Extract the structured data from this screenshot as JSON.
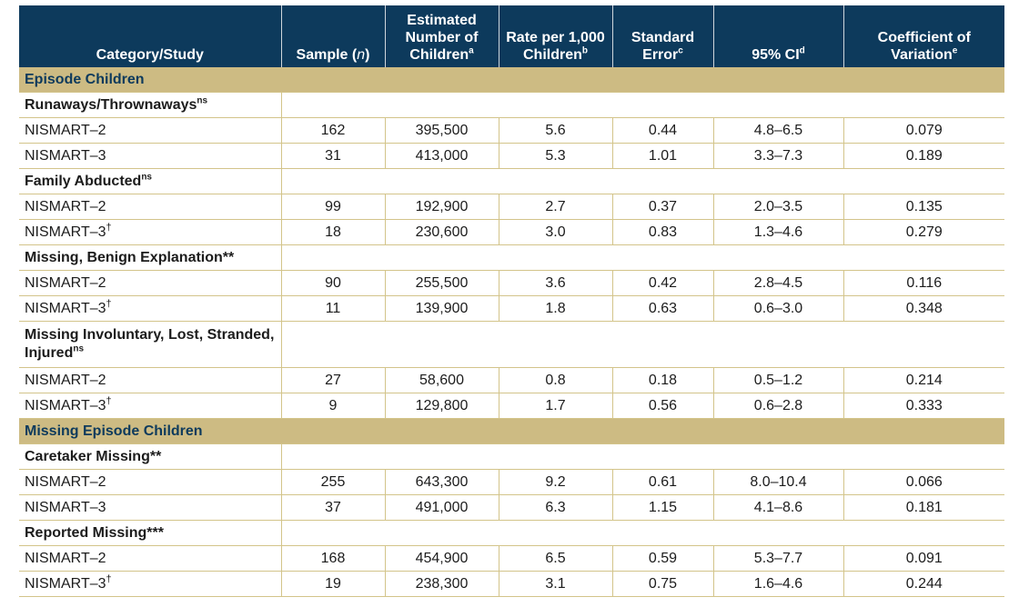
{
  "headers": [
    {
      "label": "Category/Study",
      "sup": ""
    },
    {
      "label": "Sample (",
      "ital": "n",
      "tail": ")",
      "sup": ""
    },
    {
      "label": "Estimated Number of Children",
      "sup": "a"
    },
    {
      "label": "Rate per 1,000 Children",
      "sup": "b"
    },
    {
      "label": "Standard Error",
      "sup": "c"
    },
    {
      "label": "95% CI",
      "sup": "d"
    },
    {
      "label": "Coefficient of Variation",
      "sup": "e"
    }
  ],
  "sections": {
    "episode": "Episode Children",
    "missing_episode": "Missing Episode Children"
  },
  "groups": [
    {
      "label": "Runaways/Thrownaways",
      "sup": "ns",
      "rows": [
        {
          "study": "NISMART–2",
          "dagger": "",
          "n": "162",
          "est": "395,500",
          "rate": "5.6",
          "se": "0.44",
          "ci": "4.8–6.5",
          "cv": "0.079"
        },
        {
          "study": "NISMART–3",
          "dagger": "",
          "n": "31",
          "est": "413,000",
          "rate": "5.3",
          "se": "1.01",
          "ci": "3.3–7.3",
          "cv": "0.189"
        }
      ]
    },
    {
      "label": "Family Abducted",
      "sup": "ns",
      "rows": [
        {
          "study": "NISMART–2",
          "dagger": "",
          "n": "99",
          "est": "192,900",
          "rate": "2.7",
          "se": "0.37",
          "ci": "2.0–3.5",
          "cv": "0.135"
        },
        {
          "study": "NISMART–3",
          "dagger": "†",
          "n": "18",
          "est": "230,600",
          "rate": "3.0",
          "se": "0.83",
          "ci": "1.3–4.6",
          "cv": "0.279"
        }
      ]
    },
    {
      "label": "Missing, Benign Explanation**",
      "sup": "",
      "rows": [
        {
          "study": "NISMART–2",
          "dagger": "",
          "n": "90",
          "est": "255,500",
          "rate": "3.6",
          "se": "0.42",
          "ci": "2.8–4.5",
          "cv": "0.116"
        },
        {
          "study": "NISMART–3",
          "dagger": "†",
          "n": "11",
          "est": "139,900",
          "rate": "1.8",
          "se": "0.63",
          "ci": "0.6–3.0",
          "cv": "0.348"
        }
      ]
    },
    {
      "label": "Missing Involuntary, Lost, Stranded, Injured",
      "sup": "ns",
      "rows": [
        {
          "study": "NISMART–2",
          "dagger": "",
          "n": "27",
          "est": "58,600",
          "rate": "0.8",
          "se": "0.18",
          "ci": "0.5–1.2",
          "cv": "0.214"
        },
        {
          "study": "NISMART–3",
          "dagger": "†",
          "n": "9",
          "est": "129,800",
          "rate": "1.7",
          "se": "0.56",
          "ci": "0.6–2.8",
          "cv": "0.333"
        }
      ]
    },
    {
      "label": "Caretaker Missing**",
      "sup": "",
      "rows": [
        {
          "study": "NISMART–2",
          "dagger": "",
          "n": "255",
          "est": "643,300",
          "rate": "9.2",
          "se": "0.61",
          "ci": "8.0–10.4",
          "cv": "0.066"
        },
        {
          "study": "NISMART–3",
          "dagger": "",
          "n": "37",
          "est": "491,000",
          "rate": "6.3",
          "se": "1.15",
          "ci": "4.1–8.6",
          "cv": "0.181"
        }
      ]
    },
    {
      "label": "Reported  Missing***",
      "sup": "",
      "rows": [
        {
          "study": "NISMART–2",
          "dagger": "",
          "n": "168",
          "est": "454,900",
          "rate": "6.5",
          "se": "0.59",
          "ci": "5.3–7.7",
          "cv": "0.091"
        },
        {
          "study": "NISMART–3",
          "dagger": "†",
          "n": "19",
          "est": "238,300",
          "rate": "3.1",
          "se": "0.75",
          "ci": "1.6–4.6",
          "cv": "0.244"
        }
      ]
    }
  ],
  "colors": {
    "header_bg": "#0d3a5c",
    "section_bg": "#cdbb83",
    "rule": "#d3c48a"
  }
}
